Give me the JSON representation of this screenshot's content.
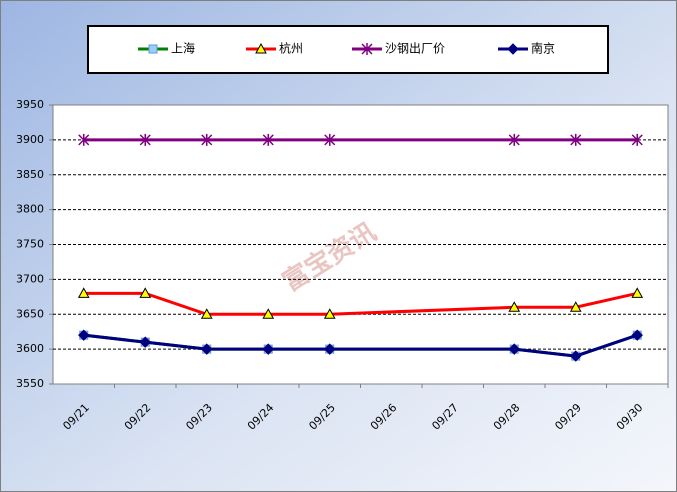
{
  "chart_data": {
    "type": "line",
    "categories": [
      "09/21",
      "09/22",
      "09/23",
      "09/24",
      "09/25",
      "09/26",
      "09/27",
      "09/28",
      "09/29",
      "09/30"
    ],
    "series": [
      {
        "name": "上海",
        "color": "#008000",
        "marker": "square",
        "marker_color": "#99ccff",
        "values": [
          3620,
          3610,
          3600,
          3600,
          3600,
          null,
          null,
          3600,
          3590,
          3620
        ]
      },
      {
        "name": "杭州",
        "color": "#ff0000",
        "marker": "triangle",
        "marker_color": "#ffff00",
        "values": [
          3680,
          3680,
          3650,
          3650,
          3650,
          null,
          null,
          3660,
          3660,
          3680
        ]
      },
      {
        "name": "沙钢出厂价",
        "color": "#800080",
        "marker": "star",
        "marker_color": "#800080",
        "values": [
          3900,
          3900,
          3900,
          3900,
          3900,
          null,
          null,
          3900,
          3900,
          3900
        ]
      },
      {
        "name": "南京",
        "color": "#000080",
        "marker": "diamond",
        "marker_color": "#000080",
        "values": [
          3620,
          3610,
          3600,
          3600,
          3600,
          null,
          null,
          3600,
          3590,
          3620
        ]
      }
    ],
    "ylim": [
      3550,
      3950
    ],
    "yticks": [
      3550,
      3600,
      3650,
      3700,
      3750,
      3800,
      3850,
      3900,
      3950
    ],
    "grid": true,
    "connect_gaps": true,
    "legend": "top",
    "watermark": "富宝资讯"
  }
}
